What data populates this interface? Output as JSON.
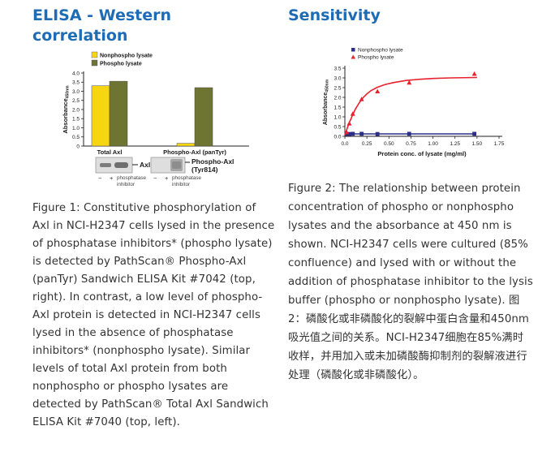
{
  "left": {
    "title": "ELISA - Western correlation",
    "caption": "Figure 1: Constitutive phosphorylation of Axl in NCI-H2347 cells lysed in the presence of phosphatase inhibitors* (phospho lysate) is detected by PathScan® Phospho-Axl (panTyr) Sandwich ELISA Kit #7042 (top, right). In contrast, a low level of phospho-Axl protein is detected in NCI-H2347 cells lysed in the absence of phosphatase inhibitors* (nonphospho lysate). Similar levels of total Axl protein from both nonphospho or phospho lysates are detected by PathScan® Total Axl Sandwich ELISA Kit #7040 (top, left).",
    "blots": {
      "left_label": "Axl",
      "right_label_line1": "Phospho-Axl",
      "right_label_line2": "(Tyr814)",
      "minus": "−",
      "plus": "+",
      "condition_line1": "phosphatase",
      "condition_line2": "inhibitor"
    }
  },
  "right": {
    "title": "Sensitivity",
    "caption": "Figure 2: The relationship between protein concentration of phospho or nonphospho lysates and the absorbance at 450 nm is shown. NCI-H2347 cells were cultured (85% confluence) and lysed with or without the addition of phosphatase inhibitor to the lysis buffer (phospho or nonphospho lysate). 图2：磷酸化或非磷酸化的裂解中蛋白含量和450nm吸光值之间的关系。NCI-H2347细胞在85%满时收样，并用加入或未加磷酸酶抑制剂的裂解液进行处理（磷酸化或非磷酸化）。"
  },
  "colors": {
    "title_blue": "#1e6cb5",
    "nonphospho_yellow": "#f6d511",
    "phospho_olive": "#6e7533",
    "nonphospho_navy": "#2c2f88",
    "phospho_red": "#e8212e",
    "axis_black": "#231f20",
    "caption_text": "#333333"
  },
  "chart_data": [
    {
      "type": "bar",
      "title": "",
      "ylabel": "Absorbance",
      "ylabel_sub": "450nm",
      "ylim": [
        0,
        4.0
      ],
      "yticks": [
        "0",
        "0.5",
        "1.0",
        "1.5",
        "2.0",
        "2.5",
        "3.0",
        "3.5",
        "4.0"
      ],
      "categories": [
        "Total Axl",
        "Phospho-Axl (panTyr)"
      ],
      "series": [
        {
          "name": "Nonphospho lysate",
          "color": "#f6d511",
          "values": [
            3.3,
            0.15
          ]
        },
        {
          "name": "Phospho lysate",
          "color": "#6e7533",
          "values": [
            3.55,
            3.2
          ]
        }
      ],
      "legend_position": "top-left",
      "grid": false
    },
    {
      "type": "scatter",
      "xlabel": "Protein conc. of lysate (mg/ml)",
      "ylabel": "Absorbance",
      "ylabel_sub": "450nm",
      "xlim": [
        0,
        1.75
      ],
      "ylim": [
        0,
        3.5
      ],
      "xticks": [
        "0.0",
        "0.25",
        "0.50",
        "0.75",
        "1.00",
        "1.25",
        "1.50",
        "1.75"
      ],
      "yticks": [
        "0.0",
        "0.5",
        "1.0",
        "1.5",
        "2.0",
        "2.5",
        "3.0",
        "3.5"
      ],
      "legend_position": "top-left",
      "grid": false,
      "series": [
        {
          "name": "Nonphospho lysate",
          "marker": "square",
          "color": "#2c2f88",
          "x": [
            0.02,
            0.05,
            0.09,
            0.19,
            0.37,
            0.73,
            1.47
          ],
          "y": [
            0.12,
            0.12,
            0.13,
            0.13,
            0.12,
            0.13,
            0.13
          ],
          "trend": "flat-line"
        },
        {
          "name": "Phospho lysate",
          "marker": "triangle",
          "color": "#e8212e",
          "x": [
            0.02,
            0.05,
            0.09,
            0.19,
            0.37,
            0.73,
            1.47
          ],
          "y": [
            0.2,
            0.65,
            1.15,
            1.9,
            2.3,
            2.75,
            3.2
          ],
          "trend": "saturation-curve",
          "fit_curve": [
            [
              0,
              0.05
            ],
            [
              0.02,
              0.33
            ],
            [
              0.04,
              0.58
            ],
            [
              0.06,
              0.8
            ],
            [
              0.09,
              1.12
            ],
            [
              0.12,
              1.4
            ],
            [
              0.16,
              1.7
            ],
            [
              0.2,
              1.95
            ],
            [
              0.25,
              2.18
            ],
            [
              0.3,
              2.36
            ],
            [
              0.37,
              2.52
            ],
            [
              0.45,
              2.65
            ],
            [
              0.55,
              2.76
            ],
            [
              0.7,
              2.87
            ],
            [
              0.85,
              2.93
            ],
            [
              1.0,
              2.97
            ],
            [
              1.2,
              3.0
            ],
            [
              1.5,
              3.02
            ]
          ]
        }
      ]
    }
  ]
}
